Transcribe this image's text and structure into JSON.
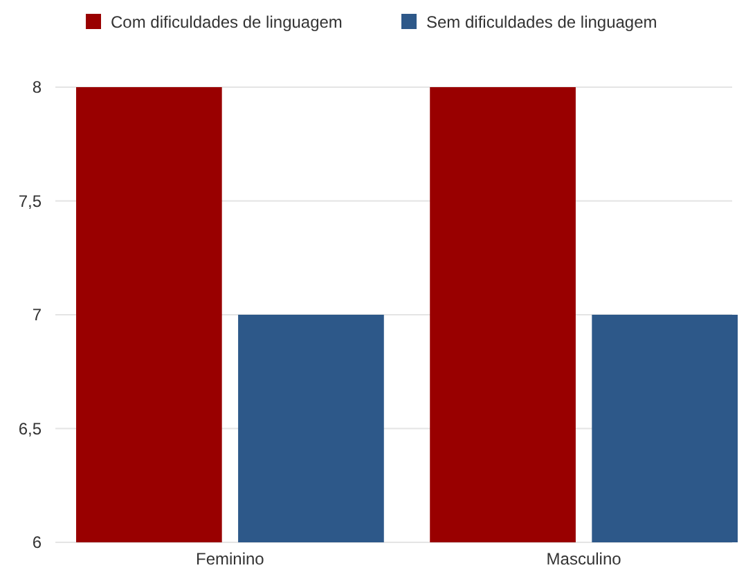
{
  "chart_data": {
    "type": "bar",
    "categories": [
      "Feminino",
      "Masculino"
    ],
    "series": [
      {
        "name": "Com dificuldades de linguagem",
        "color": "#990000",
        "values": [
          8,
          8
        ]
      },
      {
        "name": "Sem dificuldades de linguagem",
        "color": "#2d5889",
        "values": [
          7,
          7
        ]
      }
    ],
    "ylim": [
      6,
      8
    ],
    "yticks": [
      6,
      {
        "value": 6.5,
        "label": "6,5"
      },
      7,
      {
        "value": 7.5,
        "label": "7,5"
      },
      8
    ],
    "grid": "y",
    "legend": "top"
  }
}
